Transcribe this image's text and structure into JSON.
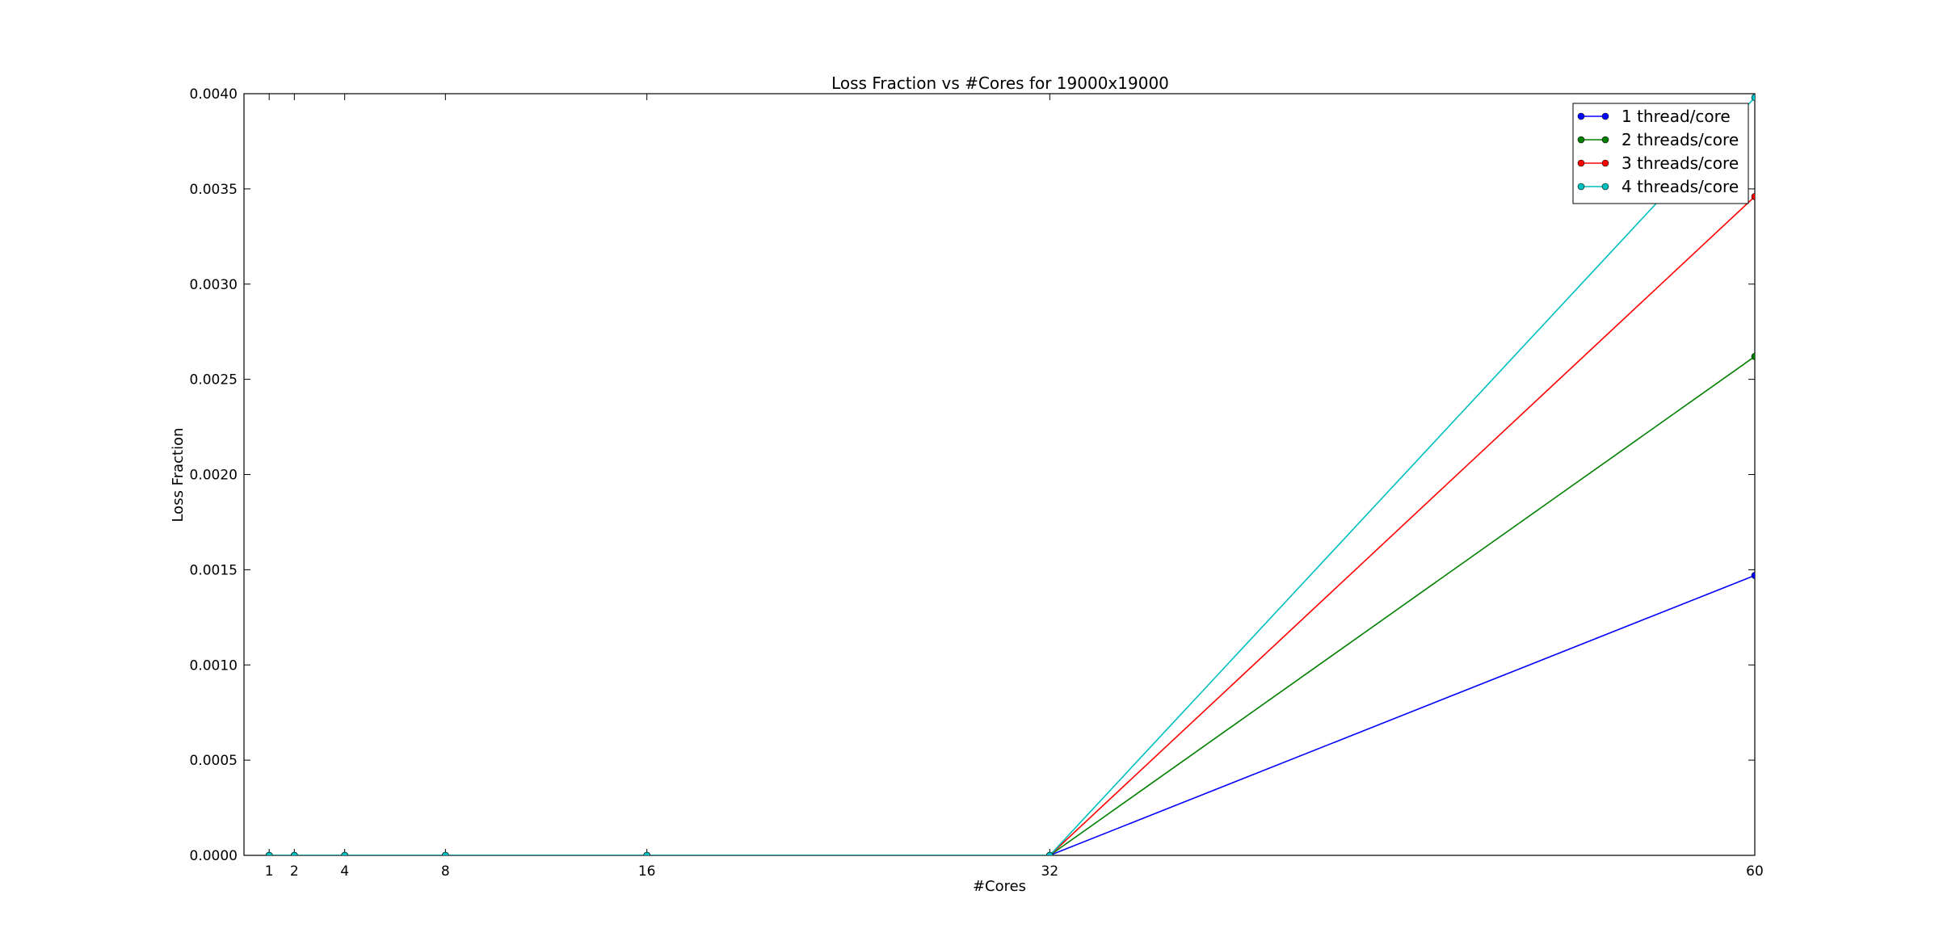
{
  "chart_data": {
    "type": "line",
    "title": "Loss Fraction vs #Cores for 19000x19000",
    "xlabel": "#Cores",
    "ylabel": "Loss Fraction",
    "x": [
      1,
      2,
      4,
      8,
      16,
      32,
      60
    ],
    "x_tick_labels": [
      "1",
      "2",
      "4",
      "8",
      "16",
      "32",
      "60"
    ],
    "xlim": [
      0,
      60
    ],
    "ylim": [
      0,
      0.004
    ],
    "y_ticks": [
      0,
      0.0005,
      0.001,
      0.0015,
      0.002,
      0.0025,
      0.003,
      0.0035,
      0.004
    ],
    "y_tick_labels": [
      "0.0000",
      "0.0005",
      "0.0010",
      "0.0015",
      "0.0020",
      "0.0025",
      "0.0030",
      "0.0035",
      "0.0040"
    ],
    "grid": false,
    "legend_position": "top-right",
    "series": [
      {
        "name": "1 thread/core",
        "color": "#0000ff",
        "values": [
          0,
          0,
          0,
          0,
          0,
          0,
          0.00147
        ]
      },
      {
        "name": "2 threads/core",
        "color": "#008000",
        "values": [
          0,
          0,
          0,
          0,
          0,
          0,
          0.00262
        ]
      },
      {
        "name": "3 threads/core",
        "color": "#ff0000",
        "values": [
          0,
          0,
          0,
          0,
          0,
          0,
          0.00346
        ]
      },
      {
        "name": "4 threads/core",
        "color": "#00bfbf",
        "values": [
          0,
          0,
          0,
          0,
          0,
          0,
          0.00398
        ]
      }
    ]
  }
}
